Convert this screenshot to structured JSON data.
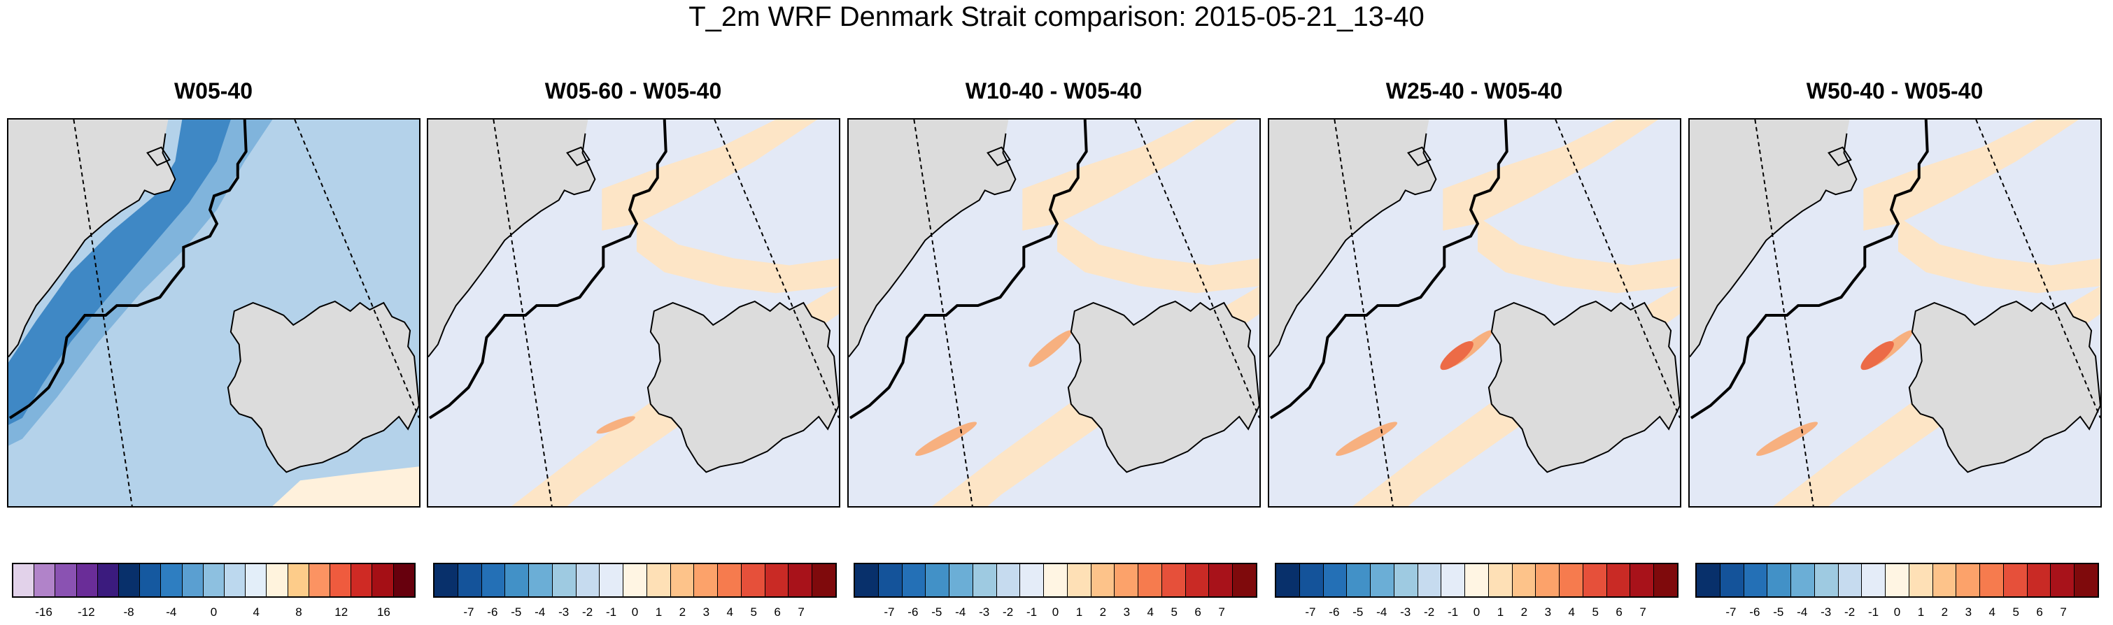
{
  "title": "T_2m WRF Denmark Strait comparison: 2015-05-21_13-40",
  "panels": [
    {
      "title": "W05-40",
      "colorbar": {
        "colors": [
          "#e2d2ea",
          "#b183c9",
          "#8a52b2",
          "#6a2d98",
          "#3b1b7e",
          "#08306b",
          "#1559a0",
          "#2e7ec1",
          "#5a9fd1",
          "#8dc0e0",
          "#bcd8ee",
          "#e3eef9",
          "#fff3dd",
          "#fdcc8a",
          "#fc9362",
          "#ef5b3e",
          "#cf2a24",
          "#a50f15",
          "#67000d"
        ],
        "tick_labels": [
          "-16",
          "-12",
          "-8",
          "-4",
          "0",
          "4",
          "8",
          "12",
          "16"
        ]
      }
    },
    {
      "title": "W05-60 - W05-40",
      "colorbar": {
        "colors": [
          "#08306b",
          "#14539a",
          "#2470b6",
          "#4291c7",
          "#6baed6",
          "#9ecae1",
          "#c6dbef",
          "#e4ecf8",
          "#fff5e3",
          "#fee0b6",
          "#fdc38a",
          "#fca26a",
          "#f67b4e",
          "#e6503a",
          "#c92a25",
          "#a8121a",
          "#7f0a0c"
        ],
        "tick_labels": [
          "-7",
          "-6",
          "-5",
          "-4",
          "-3",
          "-2",
          "-1",
          "0",
          "1",
          "2",
          "3",
          "4",
          "5",
          "6",
          "7"
        ]
      }
    },
    {
      "title": "W10-40 - W05-40",
      "colorbar": {
        "colors": [
          "#08306b",
          "#14539a",
          "#2470b6",
          "#4291c7",
          "#6baed6",
          "#9ecae1",
          "#c6dbef",
          "#e4ecf8",
          "#fff5e3",
          "#fee0b6",
          "#fdc38a",
          "#fca26a",
          "#f67b4e",
          "#e6503a",
          "#c92a25",
          "#a8121a",
          "#7f0a0c"
        ],
        "tick_labels": [
          "-7",
          "-6",
          "-5",
          "-4",
          "-3",
          "-2",
          "-1",
          "0",
          "1",
          "2",
          "3",
          "4",
          "5",
          "6",
          "7"
        ]
      }
    },
    {
      "title": "W25-40 - W05-40",
      "colorbar": {
        "colors": [
          "#08306b",
          "#14539a",
          "#2470b6",
          "#4291c7",
          "#6baed6",
          "#9ecae1",
          "#c6dbef",
          "#e4ecf8",
          "#fff5e3",
          "#fee0b6",
          "#fdc38a",
          "#fca26a",
          "#f67b4e",
          "#e6503a",
          "#c92a25",
          "#a8121a",
          "#7f0a0c"
        ],
        "tick_labels": [
          "-7",
          "-6",
          "-5",
          "-4",
          "-3",
          "-2",
          "-1",
          "0",
          "1",
          "2",
          "3",
          "4",
          "5",
          "6",
          "7"
        ]
      }
    },
    {
      "title": "W50-40 - W05-40",
      "colorbar": {
        "colors": [
          "#08306b",
          "#14539a",
          "#2470b6",
          "#4291c7",
          "#6baed6",
          "#9ecae1",
          "#c6dbef",
          "#e4ecf8",
          "#fff5e3",
          "#fee0b6",
          "#fdc38a",
          "#fca26a",
          "#f67b4e",
          "#e6503a",
          "#c92a25",
          "#a8121a",
          "#7f0a0c"
        ],
        "tick_labels": [
          "-7",
          "-6",
          "-5",
          "-4",
          "-3",
          "-2",
          "-1",
          "0",
          "1",
          "2",
          "3",
          "4",
          "5",
          "6",
          "7"
        ]
      }
    }
  ],
  "map_colors": {
    "land": "#dcdcdc",
    "ocean_diff": "#e3e9f6",
    "warm_diff": "#fde5c6",
    "warm_diff_strong": "#f7b07f",
    "warm_diff_peak": "#ec6b47",
    "abs_light": "#b4d2ea",
    "abs_mid": "#80b4dc",
    "abs_dark": "#3f88c5",
    "abs_warm": "#fff1dc"
  }
}
